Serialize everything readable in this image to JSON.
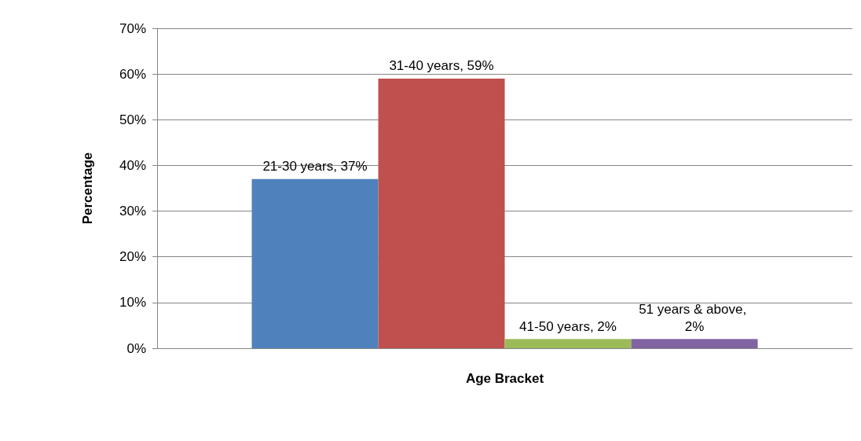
{
  "chart_data": {
    "type": "bar",
    "xlabel": "Age Bracket",
    "ylabel": "Percentage",
    "categories": [
      null
    ],
    "series": [
      {
        "color": "#4f81bd",
        "values": [
          37
        ],
        "value_labels": [
          "21-30 years, 37%"
        ]
      },
      {
        "color": "#c0504d",
        "values": [
          59
        ],
        "value_labels": [
          "31-40 years, 59%"
        ]
      },
      {
        "color": "#9bbb59",
        "values": [
          2
        ],
        "value_labels": [
          "41-50 years, 2%"
        ]
      },
      {
        "color": "#8064a2",
        "values": [
          2
        ],
        "value_labels": [
          "51 years & above, 2%"
        ]
      }
    ],
    "ylim": [
      0,
      70
    ],
    "yticks": [
      {
        "value": 0,
        "label": "0%"
      },
      {
        "value": 10,
        "label": "10%"
      },
      {
        "value": 20,
        "label": "20%"
      },
      {
        "value": 30,
        "label": "30%"
      },
      {
        "value": 40,
        "label": "40%"
      },
      {
        "value": 50,
        "label": "50%"
      },
      {
        "value": 60,
        "label": "60%"
      },
      {
        "value": 70,
        "label": "70%"
      }
    ],
    "grid": "y"
  }
}
